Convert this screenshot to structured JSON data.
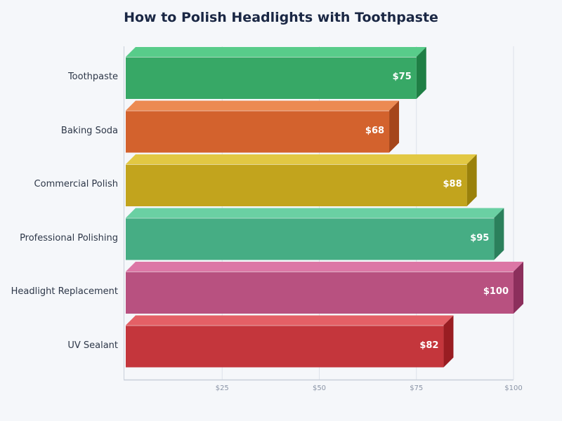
{
  "title": "How to Polish Headlights with Toothpaste",
  "chart_data": {
    "type": "bar",
    "orientation": "horizontal",
    "style": "3d",
    "title": "How to Polish Headlights with Toothpaste",
    "xlabel": "",
    "ylabel": "",
    "xlim": [
      0,
      100
    ],
    "grid": true,
    "categories": [
      "Toothpaste",
      "Baking Soda",
      "Commercial Polish",
      "Professional Polishing",
      "Headlight Replacement",
      "UV Sealant"
    ],
    "values": [
      75,
      68,
      88,
      95,
      100,
      82
    ],
    "value_labels": [
      "$75",
      "$68",
      "$88",
      "$95",
      "$100",
      "$82"
    ],
    "x_ticks": [
      25,
      50,
      75,
      100
    ],
    "x_tick_labels": [
      "$25",
      "$50",
      "$75",
      "$100"
    ],
    "colors": {
      "front": [
        "#37a866",
        "#d3622d",
        "#c2a41d",
        "#46ad84",
        "#b85180",
        "#c4363c"
      ],
      "top": [
        "#58cc8a",
        "#ec8a52",
        "#e2c843",
        "#6ad0a3",
        "#dc77a6",
        "#e46066"
      ],
      "side": [
        "#1f7f45",
        "#a5461b",
        "#9a810b",
        "#2b805c",
        "#8c2f5c",
        "#991d22"
      ]
    }
  }
}
